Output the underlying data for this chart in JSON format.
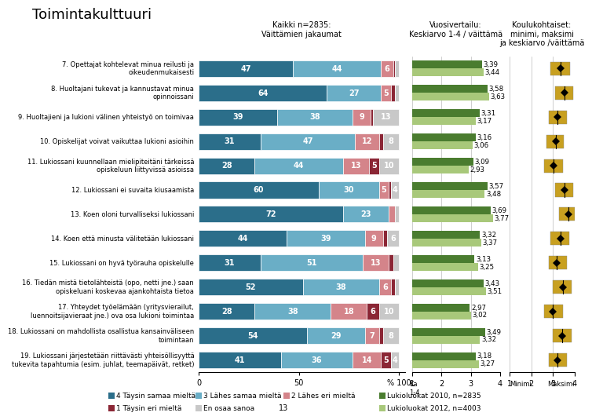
{
  "title": "Toimintakulttuuri",
  "bar_title": "Kaikki n=2835:\nVäittämien jakaumat",
  "comparison_title": "Vuosivertailu:\nKeskiarvo 1-4 / väittämä",
  "school_title": "Koulukohtaiset:\nminimi, maksimi\nja keskiarvo /väittämä",
  "rows": [
    "7. Opettajat kohtelevat minua reilusti ja\noikeudenmukaisesti",
    "8. Huoltajani tukevat ja kannustavat minua\nopinnoissani",
    "9. Huoltajieni ja lukioni välinen yhteistyö on toimivaa",
    "10. Opiskelijat voivat vaikuttaa lukioni asioihin",
    "11. Lukiossani kuunnellaan mielipiteitäni tärkeissä\nopiskeluun liittyvissä asioissa",
    "12. Lukiossani ei suvaita kiusaamista",
    "13. Koen oloni turvalliseksi lukiossani",
    "14. Koen että minusta välitetään lukiossani",
    "15. Lukiossani on hyvä työrauha opiskelulle",
    "16. Tiedän mistä tietolähteistä (opo, netti jne.) saan\nopiskeluani koskevaa ajankohtaista tietoa",
    "17. Yhteydet työelämään (yritysvierailut,\nluennoitsijavieraat jne.) ova osa lukioni toimintaa",
    "18. Lukiossani on mahdollista osallistua kansainväliseen\ntoimintaan",
    "19. Lukiossani järjestetään riittävästi yhteisöllisyyttä\ntukevita tapahtumia (esim. juhlat, teemapäivät, retket)"
  ],
  "bar_data": [
    [
      47,
      44,
      6,
      1,
      2
    ],
    [
      64,
      27,
      5,
      2,
      2
    ],
    [
      39,
      38,
      9,
      1,
      13
    ],
    [
      31,
      47,
      12,
      2,
      8
    ],
    [
      28,
      44,
      13,
      5,
      10
    ],
    [
      60,
      30,
      5,
      1,
      4
    ],
    [
      72,
      23,
      3,
      0,
      2
    ],
    [
      44,
      39,
      9,
      2,
      6
    ],
    [
      31,
      51,
      13,
      2,
      3
    ],
    [
      52,
      38,
      6,
      2,
      2
    ],
    [
      28,
      38,
      18,
      6,
      10
    ],
    [
      54,
      29,
      7,
      2,
      8
    ],
    [
      41,
      36,
      14,
      5,
      4
    ]
  ],
  "bar_colors": [
    "#2b6e8a",
    "#6aaec6",
    "#d4848a",
    "#8b2635",
    "#c8c8c8"
  ],
  "comparison_2010": [
    3.39,
    3.58,
    3.31,
    3.16,
    3.09,
    3.57,
    3.69,
    3.32,
    3.13,
    3.43,
    2.97,
    3.49,
    3.18
  ],
  "comparison_2012": [
    3.44,
    3.63,
    3.17,
    3.06,
    2.93,
    3.48,
    3.77,
    3.37,
    3.25,
    3.51,
    3.02,
    3.32,
    3.27
  ],
  "color_2010": "#4a7c2f",
  "color_2012": "#a8c87a",
  "school_centers": [
    3.35,
    3.55,
    3.22,
    3.12,
    3.02,
    3.53,
    3.73,
    3.34,
    3.18,
    3.46,
    2.99,
    3.41,
    3.22
  ],
  "school_mins": [
    2.9,
    3.1,
    2.8,
    2.7,
    2.6,
    3.1,
    3.3,
    2.9,
    2.8,
    3.0,
    2.6,
    3.0,
    2.8
  ],
  "school_maxs": [
    3.8,
    3.95,
    3.65,
    3.5,
    3.45,
    3.95,
    4.0,
    3.75,
    3.65,
    3.85,
    3.45,
    3.85,
    3.65
  ],
  "school_box_color": "#c8a020",
  "legend_labels": [
    "4 Täysin samaa mieltä",
    "3 Lähes samaa mieltä",
    "2 Lähes eri mieltä",
    "1 Täysin eri mieltä",
    "En osaa sanoa"
  ],
  "legend_2010": "Lukioluokat 2010, n=2835",
  "legend_2012": "Lukioluokat 2012, n=4003"
}
